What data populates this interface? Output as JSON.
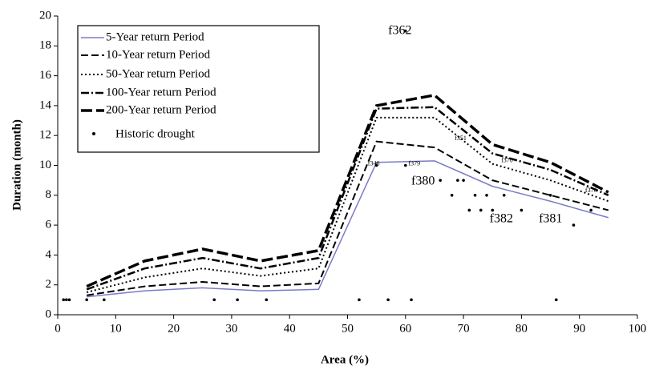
{
  "chart_data": {
    "type": "line",
    "xlabel": "Area (%)",
    "ylabel": "Duration (month)",
    "xlim": [
      0,
      100
    ],
    "xticks": [
      0,
      10,
      20,
      30,
      40,
      50,
      60,
      70,
      80,
      90,
      100
    ],
    "ylim": [
      0,
      20
    ],
    "yticks": [
      0,
      2,
      4,
      6,
      8,
      10,
      12,
      14,
      16,
      18,
      20
    ],
    "legend": "upper left",
    "x": [
      5,
      15,
      25,
      35,
      45,
      55,
      65,
      75,
      85,
      95
    ],
    "series": [
      {
        "name": "5-Year return Period",
        "color": "#7b7bc8",
        "dash": "",
        "width": 1.5,
        "values": [
          1.2,
          1.6,
          1.8,
          1.6,
          1.7,
          10.2,
          10.3,
          8.6,
          7.6,
          6.5
        ]
      },
      {
        "name": "10-Year return Period",
        "color": "#000000",
        "dash": "9,4",
        "width": 2,
        "values": [
          1.3,
          1.9,
          2.2,
          1.9,
          2.1,
          11.6,
          11.2,
          9.0,
          8.0,
          7.0
        ]
      },
      {
        "name": "50-Year return Period",
        "color": "#000000",
        "dash": "2,3",
        "width": 2,
        "values": [
          1.5,
          2.5,
          3.1,
          2.6,
          3.1,
          13.2,
          13.2,
          10.1,
          9.0,
          7.6
        ]
      },
      {
        "name": "100-Year return Period",
        "color": "#000000",
        "dash": "10,3,2,3",
        "width": 2.5,
        "values": [
          1.7,
          3.1,
          3.8,
          3.1,
          3.8,
          13.8,
          13.9,
          10.8,
          9.7,
          8.0
        ]
      },
      {
        "name": "200-Year return Period",
        "color": "#000000",
        "dash": "14,5",
        "width": 3.5,
        "values": [
          1.9,
          3.6,
          4.4,
          3.6,
          4.3,
          14.0,
          14.7,
          11.4,
          10.2,
          8.2
        ]
      }
    ],
    "scatter": {
      "name": "Historic drought",
      "color": "#000000",
      "x": [
        1,
        1.5,
        2,
        5,
        8,
        27,
        31,
        36,
        52,
        57,
        61,
        86,
        60,
        68,
        69,
        70,
        71,
        72,
        73,
        74,
        75,
        77,
        80,
        85,
        89,
        92,
        55,
        60,
        66
      ],
      "values": [
        1,
        1,
        1,
        1,
        1,
        1,
        1,
        1,
        1,
        1,
        1,
        1,
        19,
        8,
        9,
        9,
        7,
        8,
        7,
        8,
        7,
        8,
        7,
        8,
        6,
        7,
        10,
        10,
        9
      ]
    },
    "annotations": [
      {
        "text": "f362",
        "x": 57,
        "y": 19,
        "size": 16
      },
      {
        "text": "f380",
        "x": 61,
        "y": 8.9,
        "size": 16
      },
      {
        "text": "f382",
        "x": 74.5,
        "y": 6.4,
        "size": 16
      },
      {
        "text": "f381",
        "x": 83,
        "y": 6.4,
        "size": 16
      },
      {
        "text": "f346",
        "x": 53.5,
        "y": 10.1,
        "size": 8
      },
      {
        "text": "f379",
        "x": 60.5,
        "y": 10.1,
        "size": 8
      },
      {
        "text": "f351",
        "x": 68.5,
        "y": 11.8,
        "size": 8
      },
      {
        "text": "f370",
        "x": 76.5,
        "y": 10.3,
        "size": 8
      },
      {
        "text": "f376",
        "x": 91,
        "y": 8.3,
        "size": 8
      }
    ]
  }
}
